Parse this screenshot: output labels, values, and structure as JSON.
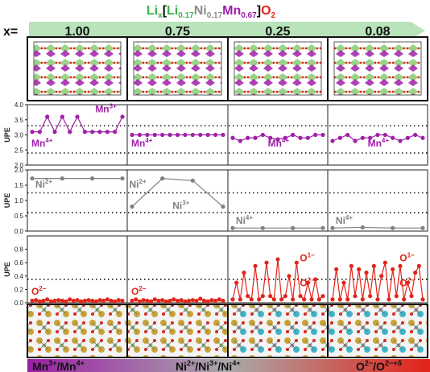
{
  "formula": {
    "li": "Li",
    "li_sub": "x",
    "lb": "[",
    "li2": "Li",
    "li2_sub": "0.17",
    "ni": "Ni",
    "ni_sub": "0.17",
    "mn": "Mn",
    "mn_sub": "0.67",
    "rb": "]",
    "o": "O",
    "o_sub": "2",
    "colors": {
      "li": "#39b54a",
      "ni": "#8c8c8c",
      "mn": "#9b1fa6",
      "o": "#e32219",
      "bracket": "#111111"
    }
  },
  "x_label": "x=",
  "x_values": [
    "1.00",
    "0.75",
    "0.25",
    "0.08"
  ],
  "colors": {
    "mn": "#a020a8",
    "ni": "#808080",
    "o": "#e0261a",
    "arrow": "#b8e3bb"
  },
  "chart_data": {
    "type": "line",
    "panels": [
      {
        "id": "mn",
        "ylabel": "UPE",
        "ylim": [
          2.0,
          4.0
        ],
        "yticks": [
          "2.0",
          "2.5",
          "3.0",
          "3.5",
          "4.0"
        ],
        "ytick_vals": [
          2.0,
          2.5,
          3.0,
          3.5,
          4.0
        ],
        "dotted": [
          3.3,
          2.4
        ],
        "series": [
          [
            3.1,
            3.1,
            3.6,
            3.1,
            3.6,
            3.1,
            3.6,
            3.1,
            3.1,
            3.1,
            3.1,
            3.1,
            3.6
          ],
          [
            3.0,
            3.0,
            3.0,
            3.0,
            3.0,
            3.0,
            3.0,
            3.0,
            3.0,
            3.0,
            3.0,
            3.0,
            3.0
          ],
          [
            2.9,
            2.8,
            2.9,
            2.9,
            3.0,
            2.9,
            2.85,
            2.9,
            3.0,
            2.9,
            2.9,
            3.0,
            3.0
          ],
          [
            2.8,
            2.9,
            3.0,
            2.8,
            2.9,
            2.9,
            3.0,
            3.0,
            2.9,
            2.8,
            2.9,
            3.0,
            2.9
          ]
        ],
        "labels": [
          {
            "text": "Mn",
            "sup": "3+",
            "col": 0,
            "x": 0.68,
            "y": 3.75
          },
          {
            "text": "Mn",
            "sup": "4+",
            "col": 0,
            "x": 0.04,
            "y": 2.62
          },
          {
            "text": "Mn",
            "sup": "4+",
            "col": 1,
            "x": 0.04,
            "y": 2.62
          },
          {
            "text": "Mn",
            "sup": "4+",
            "col": 2,
            "x": 0.4,
            "y": 2.62
          },
          {
            "text": "Mn",
            "sup": "4+",
            "col": 3,
            "x": 0.4,
            "y": 2.62
          }
        ]
      },
      {
        "id": "ni",
        "ylabel": "UPE",
        "ylim": [
          0.0,
          2.0
        ],
        "yticks": [
          "0.0",
          "0.5",
          "1.0",
          "1.5",
          "2.0"
        ],
        "ytick_vals": [
          0.0,
          0.5,
          1.0,
          1.5,
          2.0
        ],
        "dotted": [
          1.25,
          0.6
        ],
        "series": [
          [
            1.72,
            1.72,
            1.72,
            1.72
          ],
          [
            0.8,
            1.72,
            1.65,
            0.8
          ],
          [
            0.1,
            0.1,
            0.1,
            0.1
          ],
          [
            0.1,
            0.12,
            0.1,
            0.1
          ]
        ],
        "labels": [
          {
            "text": "Ni",
            "sup": "2+",
            "col": 0,
            "x": 0.08,
            "y": 1.42
          },
          {
            "text": "Ni",
            "sup": "2+",
            "col": 1,
            "x": 0.02,
            "y": 1.42
          },
          {
            "text": "Ni",
            "sup": "3+",
            "col": 1,
            "x": 0.45,
            "y": 0.72
          },
          {
            "text": "Ni",
            "sup": "4+",
            "col": 2,
            "x": 0.08,
            "y": 0.24
          },
          {
            "text": "Ni",
            "sup": "4+",
            "col": 3,
            "x": 0.08,
            "y": 0.24
          }
        ]
      },
      {
        "id": "o",
        "ylabel": "UPE",
        "ylim": [
          0.0,
          1.0
        ],
        "yticks": [
          "0.0",
          "0.2",
          "0.4",
          "0.6",
          "0.8"
        ],
        "ytick_vals": [
          0.0,
          0.2,
          0.4,
          0.6,
          0.8
        ],
        "dotted": [
          0.35
        ],
        "series": [
          [
            0.03,
            0.04,
            0.02,
            0.03,
            0.05,
            0.02,
            0.03,
            0.04,
            0.03,
            0.02,
            0.05,
            0.03,
            0.04,
            0.02,
            0.03,
            0.04,
            0.03,
            0.02,
            0.04,
            0.03,
            0.05,
            0.03,
            0.02,
            0.04,
            0.03
          ],
          [
            0.03,
            0.05,
            0.02,
            0.04,
            0.03,
            0.02,
            0.05,
            0.03,
            0.04,
            0.02,
            0.03,
            0.05,
            0.03,
            0.04,
            0.02,
            0.03,
            0.04,
            0.03,
            0.06,
            0.03,
            0.02,
            0.04,
            0.03,
            0.05,
            0.03
          ],
          [
            0.05,
            0.3,
            0.05,
            0.45,
            0.1,
            0.05,
            0.55,
            0.05,
            0.1,
            0.6,
            0.1,
            0.05,
            0.65,
            0.05,
            0.1,
            0.4,
            0.05,
            0.6,
            0.1,
            0.05,
            0.3,
            0.05,
            0.35,
            0.05,
            0.1
          ],
          [
            0.05,
            0.5,
            0.05,
            0.3,
            0.05,
            0.55,
            0.1,
            0.5,
            0.05,
            0.45,
            0.1,
            0.55,
            0.05,
            0.4,
            0.6,
            0.05,
            0.5,
            0.1,
            0.55,
            0.05,
            0.3,
            0.1,
            0.45,
            0.55,
            0.05
          ]
        ],
        "labels": [
          {
            "text": "O",
            "sup": "2−",
            "col": 0,
            "x": 0.04,
            "y": 0.12
          },
          {
            "text": "O",
            "sup": "2−",
            "col": 1,
            "x": 0.04,
            "y": 0.12
          },
          {
            "text": "O",
            "sup": "1−",
            "col": 2,
            "x": 0.72,
            "y": 0.62
          },
          {
            "text": "O",
            "sup": "2−",
            "col": 2,
            "x": 0.72,
            "y": 0.25
          },
          {
            "text": "O",
            "sup": "1−",
            "col": 3,
            "x": 0.72,
            "y": 0.62
          },
          {
            "text": "O",
            "sup": "2−",
            "col": 3,
            "x": 0.72,
            "y": 0.25
          }
        ]
      }
    ]
  },
  "bottom_bar": {
    "left": "Mn",
    "left_sup1": "3+",
    "left_mid": "/Mn",
    "left_sup2": "4+",
    "center": "Ni",
    "center_sup1": "2+",
    "center_mid1": "/Ni",
    "center_sup2": "3+",
    "center_mid2": "/Ni",
    "center_sup3": "4+",
    "right": "O",
    "right_sup1": "2−",
    "right_mid": "/O",
    "right_sup2": "2−+δ"
  }
}
